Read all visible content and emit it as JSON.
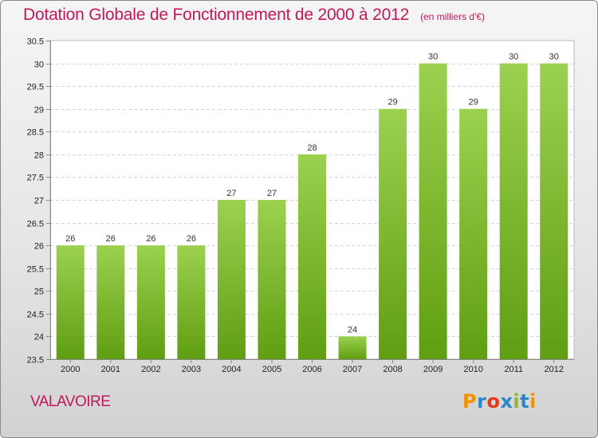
{
  "header": {
    "title": "Dotation Globale de Fonctionnement de 2000 à 2012",
    "subtitle": "(en milliers d'€)"
  },
  "footer": {
    "commune": "VALAVOIRE",
    "logo_text": "Proxiti",
    "logo_colors": [
      "#f39200",
      "#2a88c9",
      "#e43a1c",
      "#2a88c9",
      "#8bb82a",
      "#2a88c9",
      "#f39200"
    ]
  },
  "chart_data": {
    "type": "bar",
    "title": "Dotation Globale de Fonctionnement de 2000 à 2012",
    "subtitle": "(en milliers d'€)",
    "xlabel": "",
    "ylabel": "",
    "categories": [
      "2000",
      "2001",
      "2002",
      "2003",
      "2004",
      "2005",
      "2006",
      "2007",
      "2008",
      "2009",
      "2010",
      "2011",
      "2012"
    ],
    "values": [
      26,
      26,
      26,
      26,
      27,
      27,
      28,
      24,
      29,
      30,
      29,
      30,
      30
    ],
    "data_labels": [
      "26",
      "26",
      "26",
      "26",
      "27",
      "27",
      "28",
      "24",
      "29",
      "30",
      "29",
      "30",
      "30"
    ],
    "ylim": [
      23.5,
      30.5
    ],
    "yticks": [
      "23.5",
      "24",
      "24.5",
      "25",
      "25.5",
      "26",
      "26.5",
      "27",
      "27.5",
      "28",
      "28.5",
      "29",
      "29.5",
      "30",
      "30.5"
    ],
    "grid": true,
    "legend": "none",
    "bar_color_top": "#9bd14f",
    "bar_color_bottom": "#5f9e12"
  }
}
